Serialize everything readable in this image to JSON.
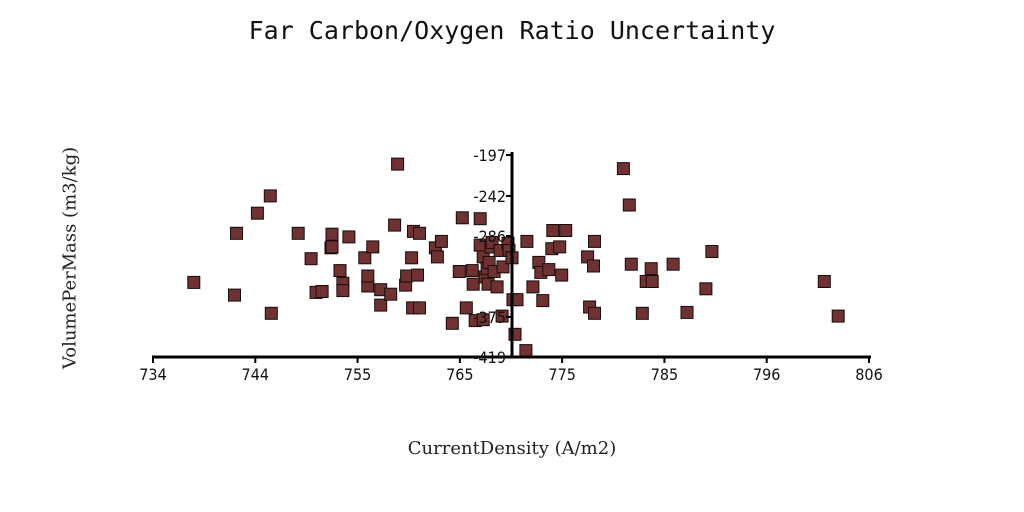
{
  "chart_data": {
    "type": "scatter",
    "title": "Far Carbon/Oxygen Ratio Uncertainty",
    "xlabel": "CurrentDensity (A/m2)",
    "ylabel": "VolumePerMass (m3/kg)",
    "xlim": [
      734,
      806
    ],
    "ylim": [
      -419,
      -197
    ],
    "x_ticks": [
      "734",
      "744",
      "755",
      "765",
      "775",
      "785",
      "796",
      "806"
    ],
    "y_ticks": [
      "-197",
      "-242",
      "-286",
      "-375",
      "-419"
    ],
    "grid": false,
    "legend": "none",
    "marker": "square",
    "marker_color": "#6e3232",
    "points": [
      {
        "x": 738.1,
        "y": -337
      },
      {
        "x": 742.2,
        "y": -351
      },
      {
        "x": 742.4,
        "y": -283
      },
      {
        "x": 744.5,
        "y": -261
      },
      {
        "x": 745.8,
        "y": -242
      },
      {
        "x": 745.9,
        "y": -371
      },
      {
        "x": 748.6,
        "y": -283
      },
      {
        "x": 749.9,
        "y": -311
      },
      {
        "x": 750.4,
        "y": -348
      },
      {
        "x": 751.0,
        "y": -347
      },
      {
        "x": 751.9,
        "y": -299
      },
      {
        "x": 752.0,
        "y": -284
      },
      {
        "x": 752.0,
        "y": -298
      },
      {
        "x": 752.8,
        "y": -324
      },
      {
        "x": 753.1,
        "y": -338
      },
      {
        "x": 753.1,
        "y": -346
      },
      {
        "x": 753.7,
        "y": -287
      },
      {
        "x": 755.3,
        "y": -310
      },
      {
        "x": 755.6,
        "y": -341
      },
      {
        "x": 755.6,
        "y": -330
      },
      {
        "x": 756.1,
        "y": -298
      },
      {
        "x": 756.9,
        "y": -345
      },
      {
        "x": 756.9,
        "y": -362
      },
      {
        "x": 757.9,
        "y": -350
      },
      {
        "x": 758.3,
        "y": -274
      },
      {
        "x": 758.6,
        "y": -207
      },
      {
        "x": 759.4,
        "y": -340
      },
      {
        "x": 759.5,
        "y": -330
      },
      {
        "x": 760.0,
        "y": -310
      },
      {
        "x": 760.1,
        "y": -365
      },
      {
        "x": 760.2,
        "y": -281
      },
      {
        "x": 760.6,
        "y": -329
      },
      {
        "x": 760.8,
        "y": -283
      },
      {
        "x": 760.8,
        "y": -365
      },
      {
        "x": 762.4,
        "y": -299
      },
      {
        "x": 762.6,
        "y": -309
      },
      {
        "x": 763.0,
        "y": -292
      },
      {
        "x": 764.1,
        "y": -382
      },
      {
        "x": 764.8,
        "y": -325
      },
      {
        "x": 765.1,
        "y": -266
      },
      {
        "x": 765.5,
        "y": -365
      },
      {
        "x": 766.1,
        "y": -324
      },
      {
        "x": 766.2,
        "y": -339
      },
      {
        "x": 766.4,
        "y": -379
      },
      {
        "x": 766.9,
        "y": -296
      },
      {
        "x": 766.9,
        "y": -267
      },
      {
        "x": 767.2,
        "y": -309
      },
      {
        "x": 767.2,
        "y": -378
      },
      {
        "x": 767.4,
        "y": -331
      },
      {
        "x": 767.6,
        "y": -322
      },
      {
        "x": 767.7,
        "y": -339
      },
      {
        "x": 767.8,
        "y": -315
      },
      {
        "x": 768.0,
        "y": -298
      },
      {
        "x": 768.1,
        "y": -293
      },
      {
        "x": 768.3,
        "y": -325
      },
      {
        "x": 768.6,
        "y": -342
      },
      {
        "x": 768.9,
        "y": -302
      },
      {
        "x": 769.1,
        "y": -374
      },
      {
        "x": 769.2,
        "y": -320
      },
      {
        "x": 769.7,
        "y": -294
      },
      {
        "x": 769.8,
        "y": -302
      },
      {
        "x": 770.1,
        "y": -310
      },
      {
        "x": 770.2,
        "y": -356
      },
      {
        "x": 770.4,
        "y": -394
      },
      {
        "x": 770.6,
        "y": -356
      },
      {
        "x": 771.5,
        "y": -412
      },
      {
        "x": 771.6,
        "y": -292
      },
      {
        "x": 772.2,
        "y": -342
      },
      {
        "x": 772.8,
        "y": -315
      },
      {
        "x": 773.0,
        "y": -326
      },
      {
        "x": 773.2,
        "y": -357
      },
      {
        "x": 773.8,
        "y": -323
      },
      {
        "x": 774.1,
        "y": -300
      },
      {
        "x": 774.2,
        "y": -280
      },
      {
        "x": 774.9,
        "y": -298
      },
      {
        "x": 775.1,
        "y": -329
      },
      {
        "x": 775.5,
        "y": -280
      },
      {
        "x": 777.7,
        "y": -309
      },
      {
        "x": 777.9,
        "y": -364
      },
      {
        "x": 778.3,
        "y": -319
      },
      {
        "x": 778.4,
        "y": -292
      },
      {
        "x": 778.4,
        "y": -371
      },
      {
        "x": 781.3,
        "y": -212
      },
      {
        "x": 781.9,
        "y": -252
      },
      {
        "x": 782.1,
        "y": -317
      },
      {
        "x": 783.2,
        "y": -371
      },
      {
        "x": 783.6,
        "y": -336
      },
      {
        "x": 784.1,
        "y": -322
      },
      {
        "x": 784.2,
        "y": -336
      },
      {
        "x": 786.3,
        "y": -317
      },
      {
        "x": 787.7,
        "y": -370
      },
      {
        "x": 789.6,
        "y": -344
      },
      {
        "x": 790.2,
        "y": -303
      },
      {
        "x": 801.5,
        "y": -336
      },
      {
        "x": 802.9,
        "y": -374
      }
    ]
  }
}
